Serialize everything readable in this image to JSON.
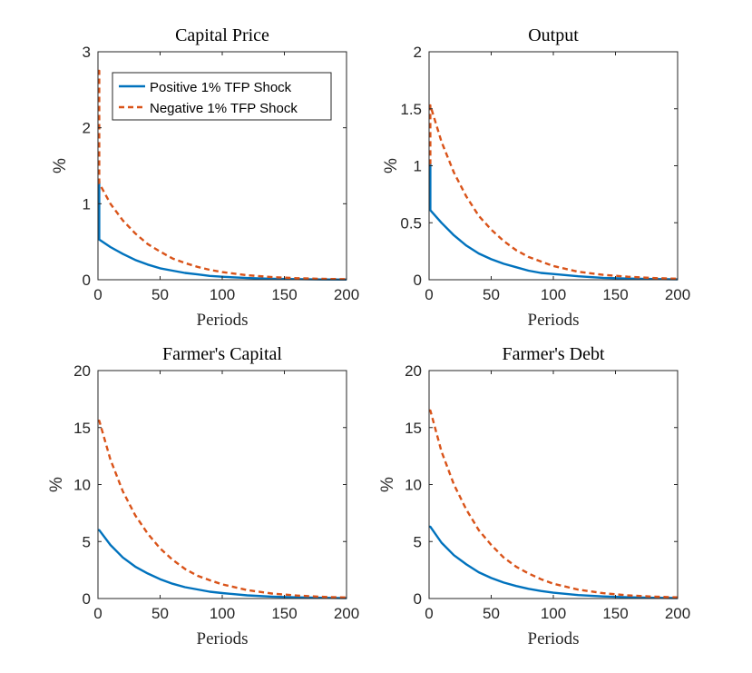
{
  "legend": {
    "entries": [
      "Positive 1% TFP Shock",
      "Negative 1% TFP Shock"
    ],
    "placement": "top-right"
  },
  "colors": {
    "positive": "#0072BD",
    "negative": "#D95319",
    "axis": "#262626"
  },
  "chart_data": [
    {
      "type": "line",
      "title": "Capital Price",
      "xlabel": "Periods",
      "ylabel": "%",
      "xlim": [
        0,
        200
      ],
      "ylim": [
        0,
        3
      ],
      "xticks": [
        "0",
        "50",
        "100",
        "150",
        "200"
      ],
      "yticks": [
        "0",
        "1",
        "2",
        "3"
      ],
      "series": [
        {
          "name": "Positive 1% TFP Shock",
          "style": "solid",
          "x": [
            0,
            1,
            1,
            10,
            20,
            30,
            40,
            50,
            60,
            70,
            80,
            90,
            100,
            120,
            140,
            160,
            180,
            200
          ],
          "values": [
            1.3,
            1.3,
            0.53,
            0.43,
            0.34,
            0.26,
            0.2,
            0.15,
            0.12,
            0.09,
            0.07,
            0.05,
            0.04,
            0.023,
            0.013,
            0.008,
            0.004,
            0.002
          ]
        },
        {
          "name": "Negative 1% TFP Shock",
          "style": "dashed",
          "x": [
            0,
            1,
            1,
            10,
            20,
            30,
            40,
            50,
            60,
            70,
            80,
            90,
            100,
            120,
            140,
            160,
            180,
            200
          ],
          "values": [
            2.75,
            2.75,
            1.27,
            1.0,
            0.78,
            0.61,
            0.47,
            0.37,
            0.28,
            0.22,
            0.17,
            0.13,
            0.1,
            0.06,
            0.035,
            0.02,
            0.012,
            0.007
          ]
        }
      ]
    },
    {
      "type": "line",
      "title": "Output",
      "xlabel": "Periods",
      "ylabel": "%",
      "xlim": [
        0,
        200
      ],
      "ylim": [
        0,
        2
      ],
      "xticks": [
        "0",
        "50",
        "100",
        "150",
        "200"
      ],
      "yticks": [
        "0",
        "0.5",
        "1",
        "1.5",
        "2"
      ],
      "series": [
        {
          "name": "Positive 1% TFP Shock",
          "style": "solid",
          "x": [
            0,
            1,
            1,
            10,
            20,
            30,
            40,
            50,
            60,
            70,
            80,
            90,
            100,
            120,
            140,
            160,
            180,
            200
          ],
          "values": [
            1.02,
            1.02,
            0.61,
            0.5,
            0.39,
            0.3,
            0.23,
            0.18,
            0.14,
            0.11,
            0.08,
            0.06,
            0.05,
            0.03,
            0.017,
            0.01,
            0.006,
            0.003
          ]
        },
        {
          "name": "Negative 1% TFP Shock",
          "style": "dashed",
          "x": [
            0,
            1,
            1,
            10,
            20,
            30,
            40,
            50,
            60,
            70,
            80,
            90,
            100,
            120,
            140,
            160,
            180,
            200
          ],
          "values": [
            1.02,
            1.02,
            1.53,
            1.21,
            0.94,
            0.73,
            0.56,
            0.44,
            0.34,
            0.26,
            0.2,
            0.16,
            0.12,
            0.07,
            0.043,
            0.026,
            0.015,
            0.009
          ]
        }
      ]
    },
    {
      "type": "line",
      "title": "Farmer's Capital",
      "xlabel": "Periods",
      "ylabel": "%",
      "xlim": [
        0,
        200
      ],
      "ylim": [
        0,
        20
      ],
      "xticks": [
        "0",
        "50",
        "100",
        "150",
        "200"
      ],
      "yticks": [
        "0",
        "5",
        "10",
        "15",
        "20"
      ],
      "series": [
        {
          "name": "Positive 1% TFP Shock",
          "style": "solid",
          "x": [
            0,
            1,
            10,
            20,
            30,
            40,
            50,
            60,
            70,
            80,
            90,
            100,
            120,
            140,
            160,
            180,
            200
          ],
          "values": [
            6.0,
            6.0,
            4.7,
            3.6,
            2.8,
            2.2,
            1.7,
            1.3,
            1.0,
            0.8,
            0.6,
            0.48,
            0.28,
            0.17,
            0.1,
            0.06,
            0.035
          ]
        },
        {
          "name": "Negative 1% TFP Shock",
          "style": "dashed",
          "x": [
            0,
            1,
            10,
            20,
            30,
            40,
            50,
            60,
            70,
            80,
            90,
            100,
            120,
            140,
            160,
            180,
            200
          ],
          "values": [
            15.6,
            15.6,
            12.2,
            9.4,
            7.3,
            5.7,
            4.4,
            3.4,
            2.6,
            2.0,
            1.6,
            1.24,
            0.74,
            0.44,
            0.26,
            0.15,
            0.09
          ]
        }
      ]
    },
    {
      "type": "line",
      "title": "Farmer's Debt",
      "xlabel": "Periods",
      "ylabel": "%",
      "xlim": [
        0,
        200
      ],
      "ylim": [
        0,
        20
      ],
      "xticks": [
        "0",
        "50",
        "100",
        "150",
        "200"
      ],
      "yticks": [
        "0",
        "5",
        "10",
        "15",
        "20"
      ],
      "series": [
        {
          "name": "Positive 1% TFP Shock",
          "style": "solid",
          "x": [
            0,
            1,
            10,
            20,
            30,
            40,
            50,
            60,
            70,
            80,
            90,
            100,
            120,
            140,
            160,
            180,
            200
          ],
          "values": [
            6.3,
            6.3,
            4.9,
            3.8,
            3.0,
            2.3,
            1.8,
            1.4,
            1.1,
            0.85,
            0.66,
            0.51,
            0.3,
            0.18,
            0.11,
            0.065,
            0.04
          ]
        },
        {
          "name": "Negative 1% TFP Shock",
          "style": "dashed",
          "x": [
            0,
            1,
            10,
            20,
            30,
            40,
            50,
            60,
            70,
            80,
            90,
            100,
            120,
            140,
            160,
            180,
            200
          ],
          "values": [
            16.5,
            16.5,
            12.9,
            10.0,
            7.8,
            6.0,
            4.7,
            3.6,
            2.8,
            2.2,
            1.7,
            1.3,
            0.78,
            0.47,
            0.28,
            0.17,
            0.1
          ]
        }
      ]
    }
  ]
}
